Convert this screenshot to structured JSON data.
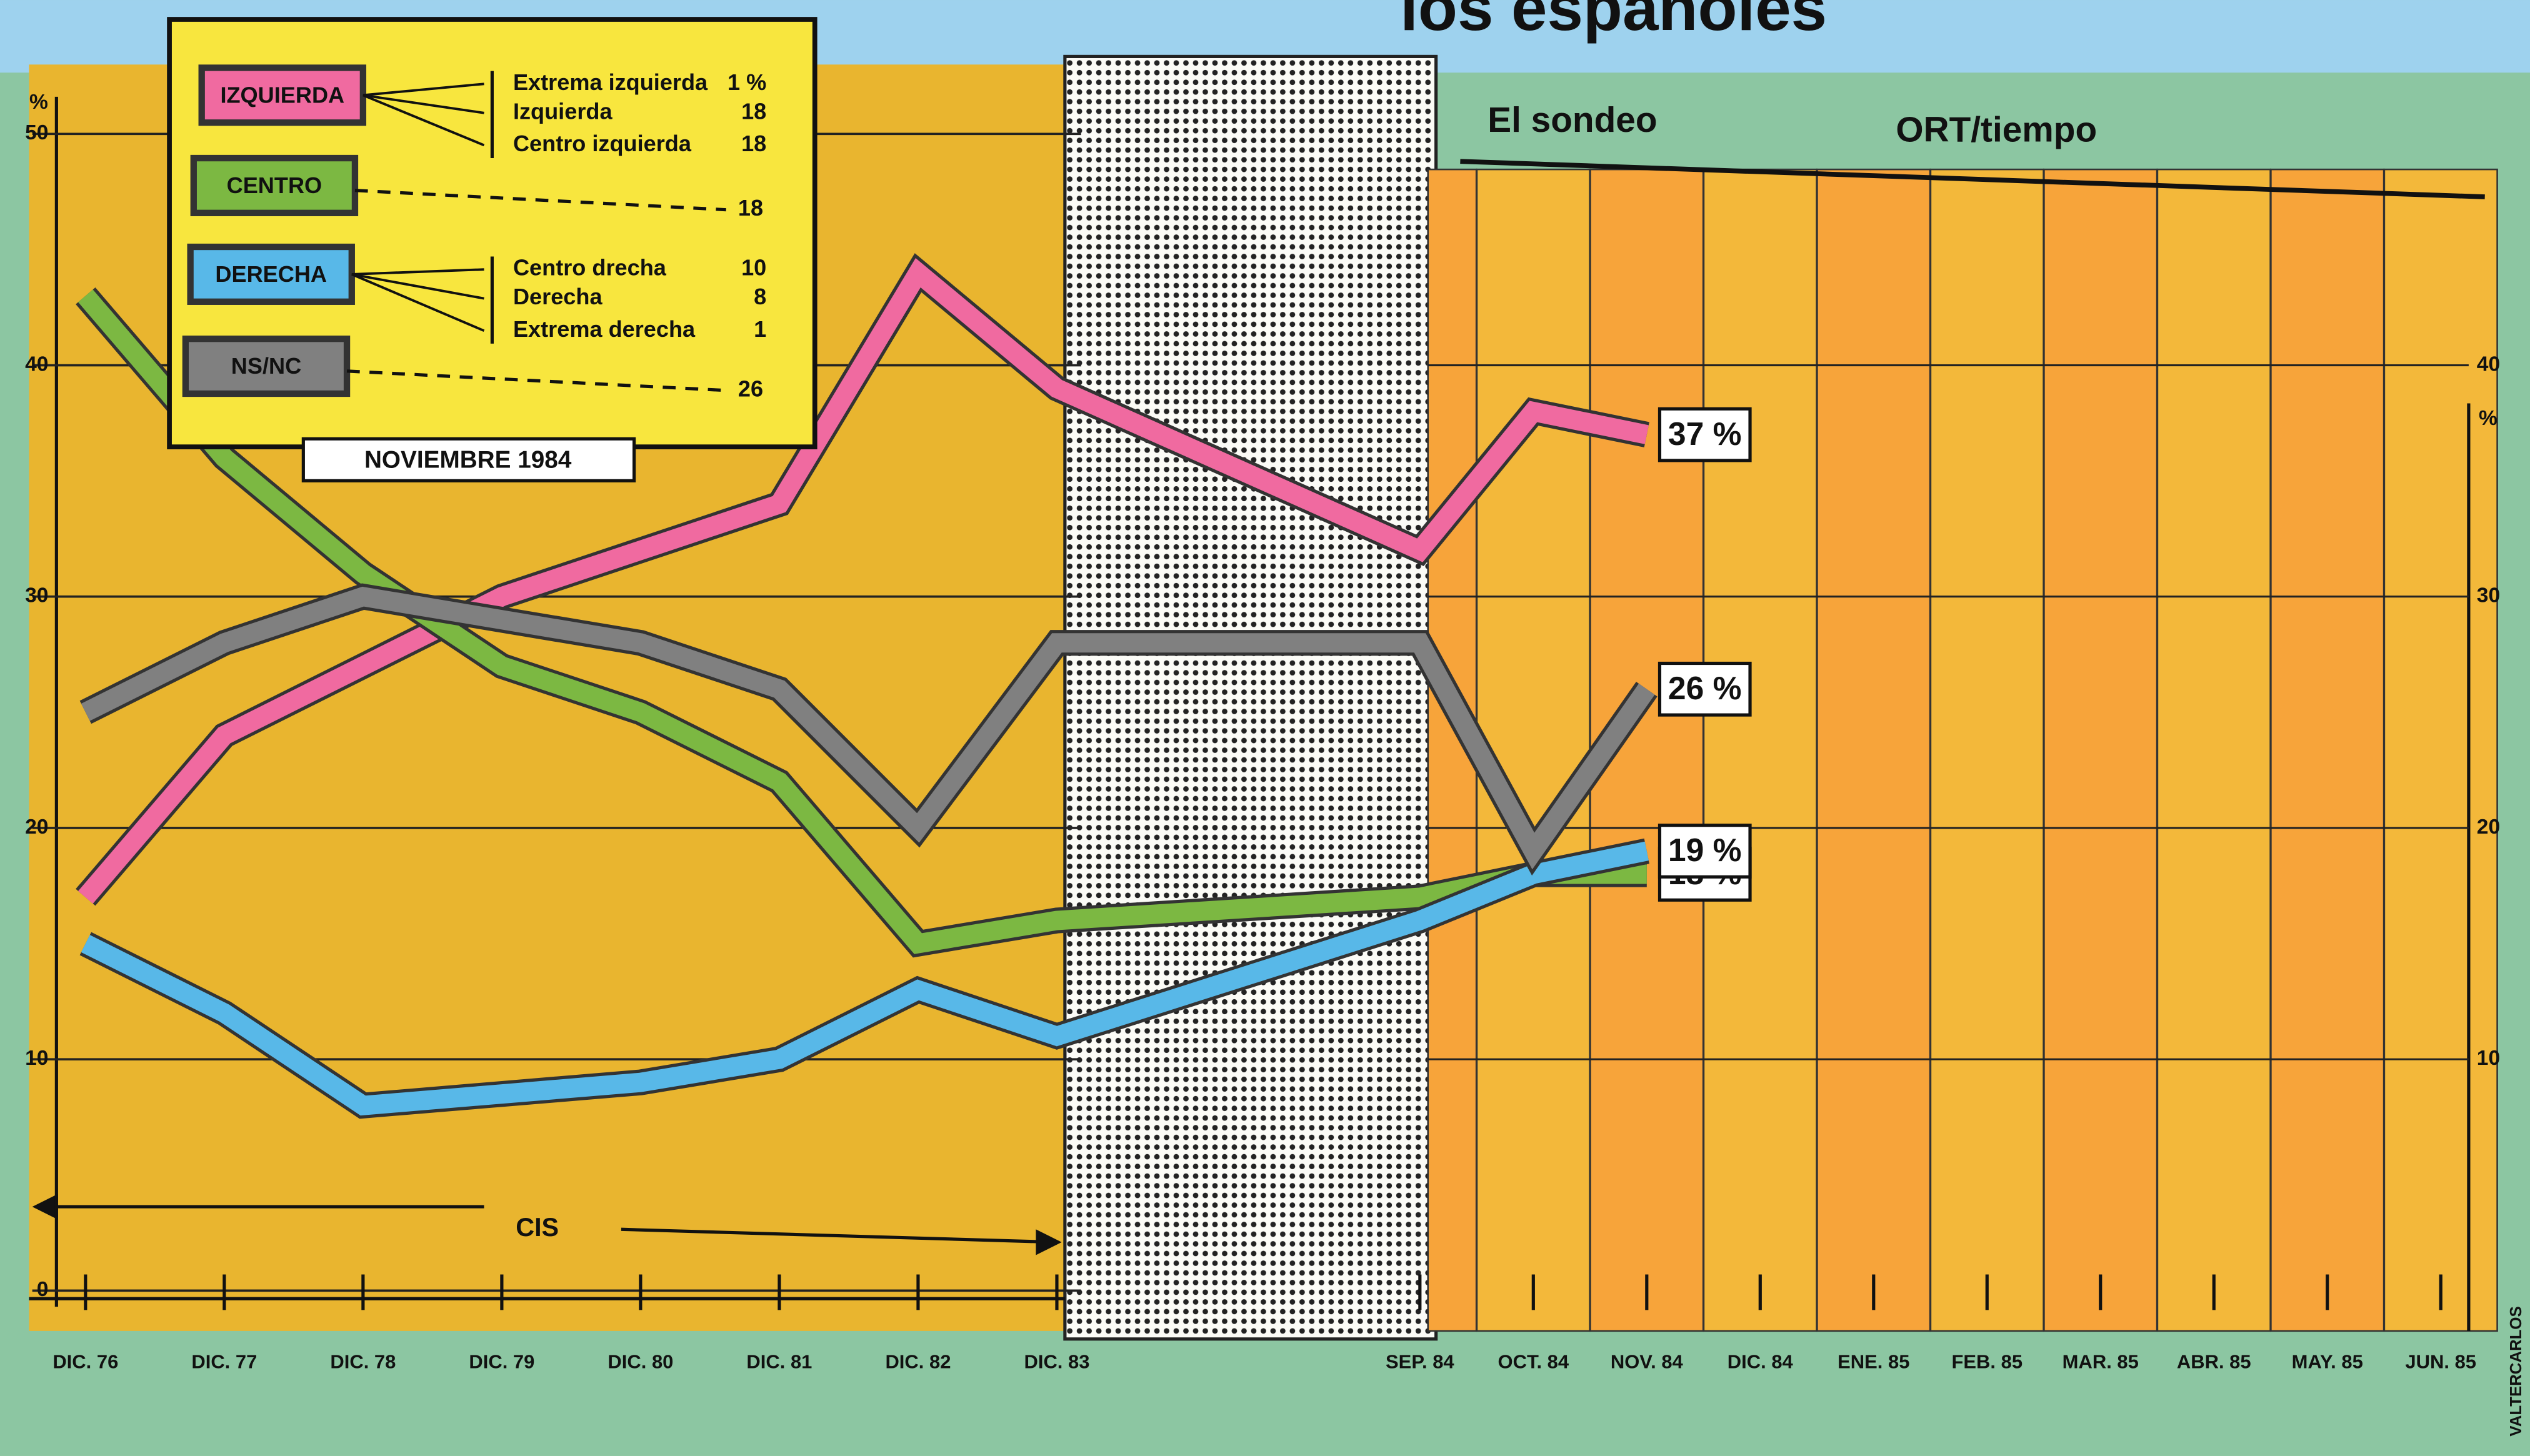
{
  "chart_data": {
    "type": "line",
    "title": "los españoles",
    "subtitle_left": "El sondeo",
    "subtitle_right": "ORT/tiempo",
    "legend_date": "NOVIEMBRE 1984",
    "period_label": "CIS",
    "credit": "VALTERCARLOS",
    "y_unit": "%",
    "y2_unit": "%",
    "categories": [
      "DIC. 76",
      "DIC. 77",
      "DIC. 78",
      "DIC. 79",
      "DIC. 80",
      "DIC. 81",
      "DIC. 82",
      "DIC. 83",
      "SEP. 84",
      "OCT. 84",
      "NOV. 84",
      "DIC. 84",
      "ENE. 85",
      "FEB. 85",
      "MAR. 85",
      "ABR. 85",
      "MAY. 85",
      "JUN. 85"
    ],
    "ylim": [
      0,
      50
    ],
    "yticks": [
      0,
      10,
      20,
      30,
      40,
      50
    ],
    "y2lim": [
      0,
      50
    ],
    "y2ticks": [
      10,
      20,
      30,
      40
    ],
    "series": [
      {
        "name": "IZQUIERDA",
        "color": "#f06aa0",
        "end_label": "37 %",
        "values": [
          17,
          24,
          27,
          30,
          32,
          34,
          44,
          39,
          32,
          38,
          37,
          null,
          null,
          null,
          null,
          null,
          null,
          null
        ],
        "breakdown": [
          {
            "label": "Extrema izquierda",
            "value": 1,
            "value_label": "1 %"
          },
          {
            "label": "Izquierda",
            "value": 18
          },
          {
            "label": "Centro izquierda",
            "value": 18
          }
        ]
      },
      {
        "name": "CENTRO",
        "color": "#7cb842",
        "end_label": "18 %",
        "values": [
          43,
          36,
          31,
          27,
          25,
          22,
          15,
          16,
          17,
          18,
          18,
          null,
          null,
          null,
          null,
          null,
          null,
          null
        ],
        "total": 18
      },
      {
        "name": "DERECHA",
        "color": "#58b8e8",
        "end_label": "19 %",
        "values": [
          15,
          12,
          8,
          8.5,
          9,
          10,
          13,
          11,
          16,
          18,
          19,
          null,
          null,
          null,
          null,
          null,
          null,
          null
        ],
        "breakdown": [
          {
            "label": "Centro drecha",
            "value": 10
          },
          {
            "label": "Derecha",
            "value": 8
          },
          {
            "label": "Extrema derecha",
            "value": 1
          }
        ]
      },
      {
        "name": "NS/NC",
        "color": "#808080",
        "end_label": "26 %",
        "values": [
          25,
          28,
          30,
          29,
          28,
          26,
          20,
          28,
          28,
          19,
          26,
          null,
          null,
          null,
          null,
          null,
          null,
          null
        ],
        "total": 26
      }
    ]
  }
}
